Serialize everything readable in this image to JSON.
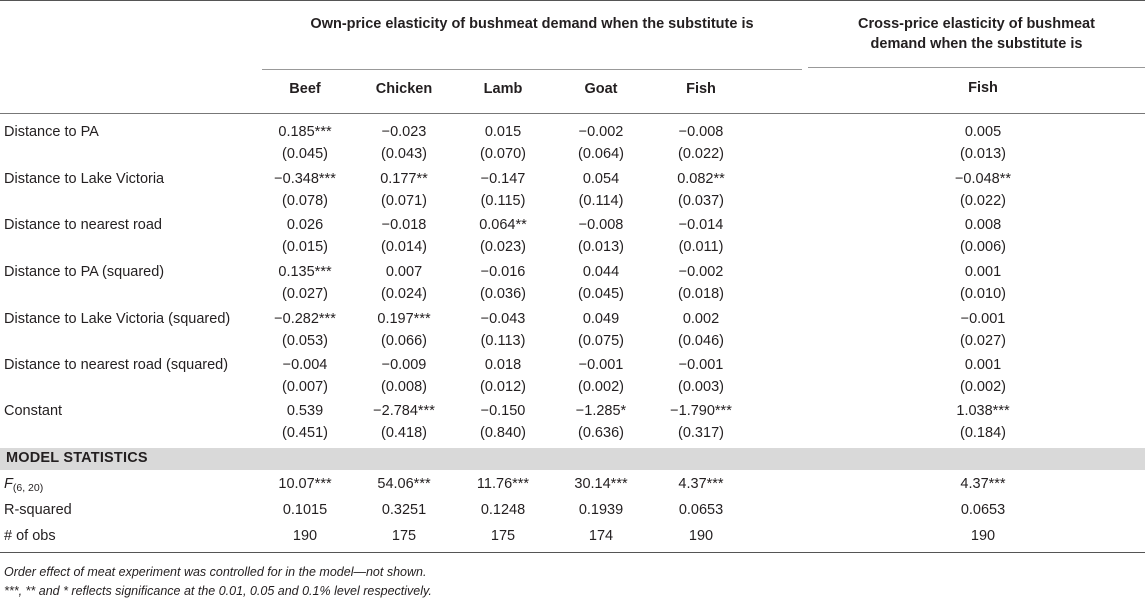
{
  "header": {
    "own_price_title": "Own-price elasticity of bushmeat demand when the substitute is",
    "cross_price_title_line1": "Cross-price elasticity of bushmeat",
    "cross_price_title_line2": "demand when the substitute is",
    "columns": [
      "Beef",
      "Chicken",
      "Lamb",
      "Goat",
      "Fish"
    ],
    "cross_column": "Fish"
  },
  "rows": [
    {
      "label": "Distance to PA",
      "coef": [
        "0.185***",
        "−0.023",
        "0.015",
        "−0.002",
        "−0.008",
        "0.005"
      ],
      "se": [
        "(0.045)",
        "(0.043)",
        "(0.070)",
        "(0.064)",
        "(0.022)",
        "(0.013)"
      ]
    },
    {
      "label": "Distance to Lake Victoria",
      "coef": [
        "−0.348***",
        "0.177**",
        "−0.147",
        "0.054",
        "0.082**",
        "−0.048**"
      ],
      "se": [
        "(0.078)",
        "(0.071)",
        "(0.115)",
        "(0.114)",
        "(0.037)",
        "(0.022)"
      ]
    },
    {
      "label": "Distance to nearest road",
      "coef": [
        "0.026",
        "−0.018",
        "0.064**",
        "−0.008",
        "−0.014",
        "0.008"
      ],
      "se": [
        "(0.015)",
        "(0.014)",
        "(0.023)",
        "(0.013)",
        "(0.011)",
        "(0.006)"
      ]
    },
    {
      "label": "Distance to PA (squared)",
      "coef": [
        "0.135***",
        "0.007",
        "−0.016",
        "0.044",
        "−0.002",
        "0.001"
      ],
      "se": [
        "(0.027)",
        "(0.024)",
        "(0.036)",
        "(0.045)",
        "(0.018)",
        "(0.010)"
      ]
    },
    {
      "label": "Distance to Lake Victoria (squared)",
      "coef": [
        "−0.282***",
        "0.197***",
        "−0.043",
        "0.049",
        "0.002",
        "−0.001"
      ],
      "se": [
        "(0.053)",
        "(0.066)",
        "(0.113)",
        "(0.075)",
        "(0.046)",
        "(0.027)"
      ]
    },
    {
      "label": "Distance to nearest road (squared)",
      "coef": [
        "−0.004",
        "−0.009",
        "0.018",
        "−0.001",
        "−0.001",
        "0.001"
      ],
      "se": [
        "(0.007)",
        "(0.008)",
        "(0.012)",
        "(0.002)",
        "(0.003)",
        "(0.002)"
      ]
    },
    {
      "label": "Constant",
      "coef": [
        "0.539",
        "−2.784***",
        "−0.150",
        "−1.285*",
        "−1.790***",
        "1.038***"
      ],
      "se": [
        "(0.451)",
        "(0.418)",
        "(0.840)",
        "(0.636)",
        "(0.317)",
        "(0.184)"
      ]
    }
  ],
  "model_statistics": {
    "section_label": "MODEL STATISTICS",
    "f_label": "F",
    "f_subscript": "(6, 20)",
    "f_values": [
      "10.07***",
      "54.06***",
      "11.76***",
      "30.14***",
      "4.37***",
      "4.37***"
    ],
    "r2_label": "R-squared",
    "r2_values": [
      "0.1015",
      "0.3251",
      "0.1248",
      "0.1939",
      "0.0653",
      "0.0653"
    ],
    "obs_label": "# of obs",
    "obs_values": [
      "190",
      "175",
      "175",
      "174",
      "190",
      "190"
    ]
  },
  "notes": {
    "line1": "Order effect of meat experiment was controlled for in the model—not shown.",
    "line2": "***, ** and * reflects significance at the 0.01, 0.05 and 0.1% level respectively."
  }
}
